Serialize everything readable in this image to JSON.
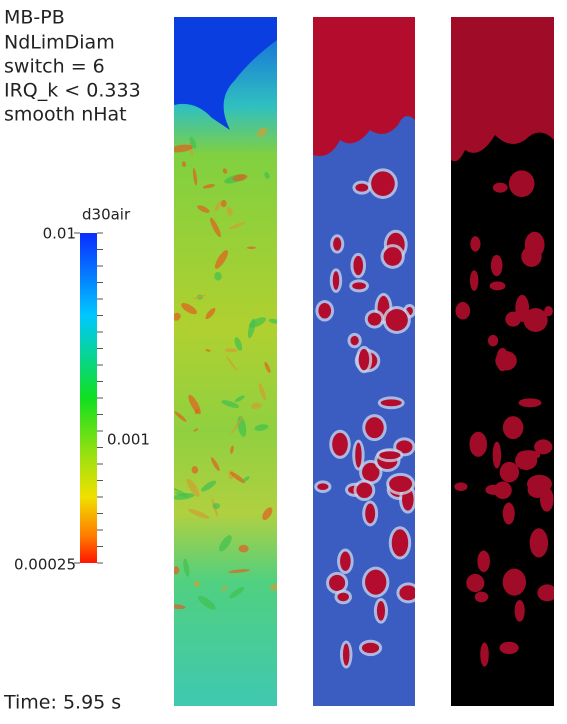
{
  "annotation": {
    "lines": [
      "MB-PB",
      "NdLimDiam",
      "switch = 6",
      "IRQ_k < 0.333",
      "smooth nHat"
    ]
  },
  "colorbar": {
    "title": "d30air",
    "labels": [
      "0.01",
      "0.001",
      "0.00025"
    ]
  },
  "time": "Time: 5.95 s"
}
